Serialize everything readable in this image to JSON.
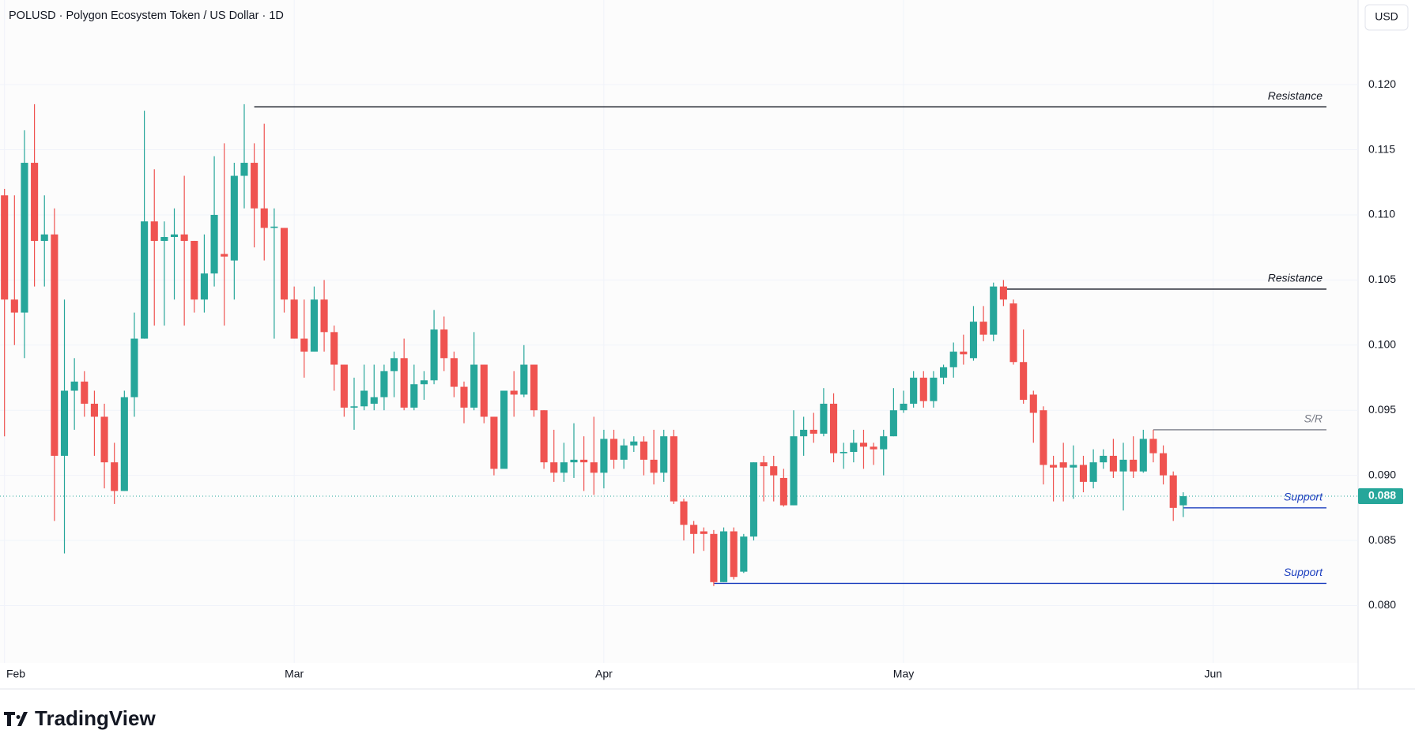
{
  "chart_data": {
    "type": "candlestick",
    "title": "POLUSD · Polygon Ecosystem Token / US Dollar · 1D",
    "currency_button": "USD",
    "brand": "TradingView",
    "up_color": "#26a69a",
    "down_color": "#ef5350",
    "grid": true,
    "ylim": [
      0.0756,
      0.1265
    ],
    "yticks": [
      {
        "value": 0.08,
        "label": "0.080"
      },
      0.085,
      {
        "value": 0.09,
        "label": "0.090"
      },
      0.095,
      {
        "value": 0.1,
        "label": "0.100"
      },
      0.105,
      {
        "value": 0.11,
        "label": "0.110"
      },
      0.115,
      {
        "value": 0.12,
        "label": "0.120"
      }
    ],
    "xlim": [
      -0.45,
      135.5
    ],
    "xticks": [
      {
        "value": 0,
        "label": "Feb"
      },
      {
        "value": 29,
        "label": "Mar"
      },
      {
        "value": 60,
        "label": "Apr"
      },
      {
        "value": 90,
        "label": "May"
      },
      {
        "value": 121,
        "label": "Jun"
      }
    ],
    "open": [
      0.1115,
      0.1035,
      0.1025,
      0.114,
      0.108,
      0.1085,
      0.0915,
      0.0965,
      0.0972,
      0.0955,
      0.0945,
      0.091,
      0.0888,
      0.096,
      0.1005,
      0.1095,
      0.108,
      0.1083,
      0.1085,
      0.108,
      0.1035,
      0.1055,
      0.107,
      0.1065,
      0.113,
      0.114,
      0.1105,
      0.109,
      0.109,
      0.1035,
      0.1005,
      0.0995,
      0.1035,
      0.101,
      0.0985,
      0.0952,
      0.0953,
      0.0955,
      0.096,
      0.098,
      0.099,
      0.0952,
      0.097,
      0.0973,
      0.1012,
      0.099,
      0.0968,
      0.0952,
      0.0985,
      0.0945,
      0.0905,
      0.0965,
      0.0962,
      0.0985,
      0.095,
      0.091,
      0.0902,
      0.091,
      0.0912,
      0.091,
      0.0902,
      0.0928,
      0.0912,
      0.0923,
      0.0926,
      0.0912,
      0.0902,
      0.093,
      0.088,
      0.0862,
      0.0857,
      0.0855,
      0.0818,
      0.0857,
      0.0826,
      0.0853,
      0.091,
      0.0907,
      0.0898,
      0.0877,
      0.093,
      0.0935,
      0.0932,
      0.0955,
      0.0917,
      0.0918,
      0.0925,
      0.0922,
      0.092,
      0.093,
      0.095,
      0.0955,
      0.0975,
      0.0957,
      0.0975,
      0.0983,
      0.0995,
      0.099,
      0.1018,
      0.1008,
      0.1045,
      0.1032,
      0.0987,
      0.0962,
      0.095,
      0.0908,
      0.091,
      0.0906,
      0.0908,
      0.0895,
      0.091,
      0.0915,
      0.0903,
      0.0912,
      0.0903,
      0.0928,
      0.0917,
      0.09,
      0.0877
    ],
    "high": [
      0.112,
      0.1115,
      0.1165,
      0.1185,
      0.1115,
      0.1105,
      0.1035,
      0.099,
      0.098,
      0.0965,
      0.0955,
      0.0925,
      0.0965,
      0.1025,
      0.118,
      0.1135,
      0.1095,
      0.1105,
      0.113,
      0.108,
      0.1085,
      0.1145,
      0.1155,
      0.114,
      0.1185,
      0.1155,
      0.117,
      0.1105,
      0.109,
      0.1045,
      0.1035,
      0.1045,
      0.105,
      0.1015,
      0.0985,
      0.0975,
      0.0985,
      0.0985,
      0.0985,
      0.0995,
      0.1005,
      0.0985,
      0.098,
      0.1027,
      0.1022,
      0.0995,
      0.0972,
      0.101,
      0.0985,
      0.0945,
      0.0965,
      0.098,
      0.1,
      0.0985,
      0.095,
      0.0935,
      0.0925,
      0.094,
      0.093,
      0.0945,
      0.0935,
      0.0935,
      0.0928,
      0.093,
      0.093,
      0.0935,
      0.0935,
      0.0935,
      0.0882,
      0.0865,
      0.086,
      0.0858,
      0.086,
      0.086,
      0.0855,
      0.091,
      0.0915,
      0.0915,
      0.0905,
      0.095,
      0.0945,
      0.0948,
      0.0967,
      0.0963,
      0.0925,
      0.0935,
      0.0935,
      0.0925,
      0.0935,
      0.0967,
      0.0965,
      0.098,
      0.098,
      0.098,
      0.0985,
      0.1002,
      0.1008,
      0.103,
      0.103,
      0.1048,
      0.105,
      0.1035,
      0.1012,
      0.0965,
      0.0953,
      0.0915,
      0.0925,
      0.0923,
      0.0915,
      0.092,
      0.092,
      0.0928,
      0.0925,
      0.093,
      0.0935,
      0.0935,
      0.0923,
      0.0903,
      0.0887
    ],
    "low": [
      0.093,
      0.1,
      0.099,
      0.1045,
      0.1045,
      0.0865,
      0.084,
      0.0935,
      0.0945,
      0.0915,
      0.089,
      0.0878,
      0.0888,
      0.0945,
      0.1005,
      0.1015,
      0.1015,
      0.1035,
      0.1015,
      0.1025,
      0.1025,
      0.1045,
      0.1015,
      0.1035,
      0.1105,
      0.1075,
      0.1065,
      0.1005,
      0.1025,
      0.1005,
      0.0975,
      0.0995,
      0.0995,
      0.0965,
      0.0945,
      0.0935,
      0.095,
      0.095,
      0.095,
      0.096,
      0.095,
      0.095,
      0.0958,
      0.097,
      0.098,
      0.096,
      0.094,
      0.095,
      0.094,
      0.09,
      0.091,
      0.0945,
      0.096,
      0.0945,
      0.0905,
      0.0895,
      0.0895,
      0.0898,
      0.0888,
      0.0885,
      0.089,
      0.0905,
      0.0905,
      0.0918,
      0.09,
      0.0893,
      0.0895,
      0.0878,
      0.085,
      0.084,
      0.0842,
      0.0815,
      0.0818,
      0.082,
      0.0825,
      0.085,
      0.088,
      0.088,
      0.0876,
      0.0877,
      0.0915,
      0.0925,
      0.093,
      0.091,
      0.0905,
      0.091,
      0.0905,
      0.0908,
      0.09,
      0.093,
      0.0948,
      0.0952,
      0.0952,
      0.0952,
      0.097,
      0.0975,
      0.0985,
      0.0988,
      0.1003,
      0.1003,
      0.103,
      0.0985,
      0.0955,
      0.0925,
      0.0893,
      0.088,
      0.088,
      0.0882,
      0.0887,
      0.089,
      0.0905,
      0.0898,
      0.0873,
      0.0898,
      0.0902,
      0.091,
      0.0893,
      0.0865,
      0.0868
    ],
    "close": [
      0.1035,
      0.1025,
      0.114,
      0.108,
      0.1085,
      0.0915,
      0.0965,
      0.0972,
      0.0955,
      0.0945,
      0.091,
      0.0888,
      0.096,
      0.1005,
      0.1095,
      0.108,
      0.1083,
      0.1085,
      0.108,
      0.1035,
      0.1055,
      0.11,
      0.1068,
      0.113,
      0.114,
      0.1105,
      0.109,
      0.1091,
      0.1035,
      0.1005,
      0.0995,
      0.1035,
      0.101,
      0.0985,
      0.0952,
      0.0953,
      0.0965,
      0.096,
      0.098,
      0.099,
      0.0952,
      0.097,
      0.0973,
      0.1012,
      0.099,
      0.0968,
      0.0952,
      0.0985,
      0.0945,
      0.0905,
      0.0965,
      0.0962,
      0.0985,
      0.095,
      0.091,
      0.0902,
      0.091,
      0.0912,
      0.091,
      0.0902,
      0.0928,
      0.0912,
      0.0923,
      0.0926,
      0.0912,
      0.0902,
      0.093,
      0.088,
      0.0862,
      0.0855,
      0.0855,
      0.0818,
      0.0857,
      0.0822,
      0.0853,
      0.091,
      0.0907,
      0.09,
      0.0877,
      0.093,
      0.0935,
      0.0932,
      0.0955,
      0.0917,
      0.0918,
      0.0925,
      0.0922,
      0.092,
      0.093,
      0.095,
      0.0955,
      0.0975,
      0.0957,
      0.0975,
      0.0983,
      0.0995,
      0.0993,
      0.1018,
      0.1008,
      0.1045,
      0.1035,
      0.0987,
      0.0958,
      0.0948,
      0.0908,
      0.0906,
      0.0906,
      0.0908,
      0.0895,
      0.091,
      0.0915,
      0.0903,
      0.0912,
      0.0903,
      0.0928,
      0.0917,
      0.09,
      0.0875,
      0.0884
    ],
    "last_price_label": "0.088",
    "levels": [
      {
        "label": "Resistance",
        "value": 0.1183,
        "start": 25,
        "color": "#131722"
      },
      {
        "label": "Resistance",
        "value": 0.1043,
        "start": 100,
        "color": "#131722"
      },
      {
        "label": "S/R",
        "value": 0.0935,
        "start": 115,
        "color": "#787b86"
      },
      {
        "label": "Support",
        "value": 0.0875,
        "start": 118,
        "color": "#1c3fbf"
      },
      {
        "label": "Support",
        "value": 0.0817,
        "start": 71,
        "color": "#1c3fbf"
      }
    ]
  }
}
